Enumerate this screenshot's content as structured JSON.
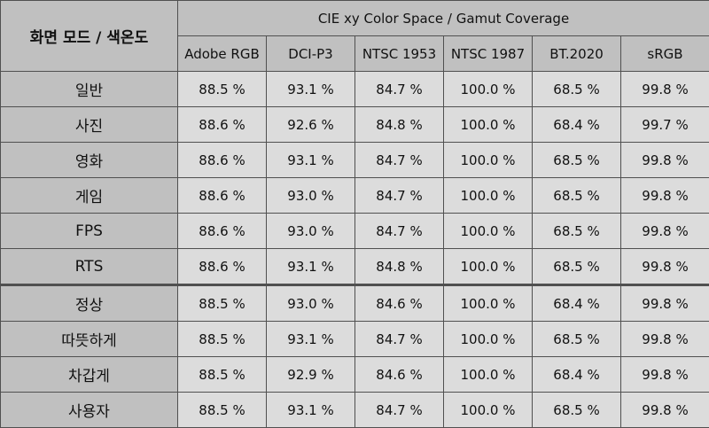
{
  "table": {
    "corner_header": "화면 모드 / 색온도",
    "group_header": "CIE xy Color Space / Gamut Coverage",
    "columns": [
      "Adobe RGB",
      "DCI-P3",
      "NTSC 1953",
      "NTSC 1987",
      "BT.2020",
      "sRGB"
    ],
    "rows": [
      {
        "label": "일반",
        "values": [
          "88.5 %",
          "93.1 %",
          "84.7 %",
          "100.0 %",
          "68.5 %",
          "99.8 %"
        ]
      },
      {
        "label": "사진",
        "values": [
          "88.6 %",
          "92.6 %",
          "84.8 %",
          "100.0 %",
          "68.4 %",
          "99.7 %"
        ]
      },
      {
        "label": "영화",
        "values": [
          "88.6 %",
          "93.1 %",
          "84.7 %",
          "100.0 %",
          "68.5 %",
          "99.8 %"
        ]
      },
      {
        "label": "게임",
        "values": [
          "88.6 %",
          "93.0 %",
          "84.7 %",
          "100.0 %",
          "68.5 %",
          "99.8 %"
        ]
      },
      {
        "label": "FPS",
        "values": [
          "88.6 %",
          "93.0 %",
          "84.7 %",
          "100.0 %",
          "68.5 %",
          "99.8 %"
        ]
      },
      {
        "label": "RTS",
        "values": [
          "88.6 %",
          "93.1 %",
          "84.8 %",
          "100.0 %",
          "68.5 %",
          "99.8 %"
        ]
      },
      {
        "label": "정상",
        "values": [
          "88.5 %",
          "93.0 %",
          "84.6 %",
          "100.0 %",
          "68.4 %",
          "99.8 %"
        ]
      },
      {
        "label": "따뜻하게",
        "values": [
          "88.5 %",
          "93.1 %",
          "84.7 %",
          "100.0 %",
          "68.5 %",
          "99.8 %"
        ]
      },
      {
        "label": "차갑게",
        "values": [
          "88.5 %",
          "92.9 %",
          "84.6 %",
          "100.0 %",
          "68.4 %",
          "99.8 %"
        ]
      },
      {
        "label": "사용자",
        "values": [
          "88.5 %",
          "93.1 %",
          "84.7 %",
          "100.0 %",
          "68.5 %",
          "99.8 %"
        ]
      }
    ],
    "group_break_after_row": 6
  }
}
